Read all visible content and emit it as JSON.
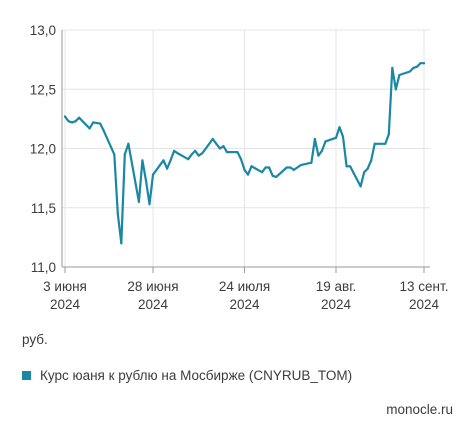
{
  "chart_data": {
    "type": "line",
    "title": "",
    "xlabel": "",
    "ylabel": "руб.",
    "ylim": [
      11.0,
      13.0
    ],
    "y_ticks": [
      "11,0",
      "11,5",
      "12,0",
      "12,5",
      "13,0"
    ],
    "y_tick_values": [
      11.0,
      11.5,
      12.0,
      12.5,
      13.0
    ],
    "grid": true,
    "legend_position": "bottom-left",
    "x_ticks": [
      {
        "line1": "3 июня",
        "line2": "2024",
        "date": "2024-06-03"
      },
      {
        "line1": "28 июня",
        "line2": "2024",
        "date": "2024-06-28"
      },
      {
        "line1": "24 июля",
        "line2": "2024",
        "date": "2024-07-24"
      },
      {
        "line1": "19 авг.",
        "line2": "2024",
        "date": "2024-08-19"
      },
      {
        "line1": "13 сент.",
        "line2": "2024",
        "date": "2024-09-13"
      }
    ],
    "series": [
      {
        "name": "Курс юаня к рублю на Мосбирже (CNYRUB_TOM)",
        "color": "#1a87a5",
        "x": [
          "2024-06-03",
          "2024-06-04",
          "2024-06-05",
          "2024-06-06",
          "2024-06-07",
          "2024-06-10",
          "2024-06-11",
          "2024-06-13",
          "2024-06-14",
          "2024-06-17",
          "2024-06-18",
          "2024-06-19",
          "2024-06-20",
          "2024-06-21",
          "2024-06-24",
          "2024-06-25",
          "2024-06-26",
          "2024-06-27",
          "2024-06-28",
          "2024-07-01",
          "2024-07-02",
          "2024-07-03",
          "2024-07-04",
          "2024-07-05",
          "2024-07-08",
          "2024-07-09",
          "2024-07-10",
          "2024-07-11",
          "2024-07-12",
          "2024-07-15",
          "2024-07-16",
          "2024-07-17",
          "2024-07-18",
          "2024-07-19",
          "2024-07-22",
          "2024-07-23",
          "2024-07-24",
          "2024-07-25",
          "2024-07-26",
          "2024-07-29",
          "2024-07-30",
          "2024-07-31",
          "2024-08-01",
          "2024-08-02",
          "2024-08-05",
          "2024-08-06",
          "2024-08-07",
          "2024-08-08",
          "2024-08-09",
          "2024-08-12",
          "2024-08-13",
          "2024-08-14",
          "2024-08-15",
          "2024-08-16",
          "2024-08-19",
          "2024-08-20",
          "2024-08-21",
          "2024-08-22",
          "2024-08-23",
          "2024-08-26",
          "2024-08-27",
          "2024-08-28",
          "2024-08-29",
          "2024-08-30",
          "2024-09-02",
          "2024-09-03",
          "2024-09-04",
          "2024-09-05",
          "2024-09-06",
          "2024-09-09",
          "2024-09-10",
          "2024-09-11",
          "2024-09-12",
          "2024-09-13"
        ],
        "values": [
          12.27,
          12.23,
          12.22,
          12.23,
          12.26,
          12.17,
          12.22,
          12.21,
          12.15,
          11.95,
          11.45,
          11.2,
          11.95,
          12.04,
          11.55,
          11.9,
          11.73,
          11.53,
          11.78,
          11.9,
          11.83,
          11.9,
          11.98,
          11.96,
          11.91,
          11.95,
          11.98,
          11.94,
          11.96,
          12.08,
          12.04,
          12.0,
          12.02,
          11.97,
          11.97,
          11.91,
          11.82,
          11.78,
          11.85,
          11.8,
          11.84,
          11.84,
          11.77,
          11.76,
          11.84,
          11.84,
          11.82,
          11.84,
          11.86,
          11.88,
          12.08,
          11.94,
          11.98,
          12.06,
          12.09,
          12.18,
          12.1,
          11.85,
          11.85,
          11.68,
          11.8,
          11.83,
          11.9,
          12.04,
          12.04,
          12.12,
          12.68,
          12.5,
          12.62,
          12.65,
          12.68,
          12.69,
          12.72,
          12.72
        ]
      }
    ]
  },
  "unit_label": "руб.",
  "legend_label": "Курс юаня к рублю на Мосбирже (CNYRUB_TOM)",
  "source_label": "monocle.ru",
  "colors": {
    "line": "#1a87a5",
    "grid": "#e4e4e4",
    "axis": "#9a9a9a",
    "text": "#3c3c3c"
  }
}
